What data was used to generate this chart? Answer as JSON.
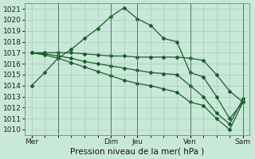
{
  "title": "Pression niveau de la mer( hPa )",
  "bg_color": "#c8e8d8",
  "grid_color": "#a8ccc0",
  "line_color": "#1a5e2a",
  "ylim": [
    1009.5,
    1021.5
  ],
  "yticks": [
    1010,
    1011,
    1012,
    1013,
    1014,
    1015,
    1016,
    1017,
    1018,
    1019,
    1020,
    1021
  ],
  "xtick_labels": [
    "Mer",
    "Dim",
    "Jeu",
    "Ven",
    "Sam"
  ],
  "xtick_positions": [
    0,
    6,
    8,
    12,
    16
  ],
  "line1_x": [
    0,
    1,
    2,
    3,
    4,
    5,
    6,
    7,
    8,
    9,
    10,
    11,
    12,
    13,
    14,
    15,
    16
  ],
  "line1_y": [
    1014.0,
    1015.2,
    1016.5,
    1017.3,
    1018.3,
    1019.2,
    1020.3,
    1021.1,
    1020.1,
    1019.5,
    1018.3,
    1018.0,
    1015.2,
    1014.8,
    1013.0,
    1011.0,
    1012.5
  ],
  "line2_x": [
    0,
    1,
    2,
    3,
    4,
    5,
    6,
    7,
    8,
    9,
    10,
    11,
    12,
    13,
    14,
    15,
    16
  ],
  "line2_y": [
    1017.0,
    1017.0,
    1017.0,
    1017.0,
    1016.9,
    1016.8,
    1016.7,
    1016.7,
    1016.6,
    1016.6,
    1016.6,
    1016.6,
    1016.5,
    1016.3,
    1015.0,
    1013.5,
    1012.5
  ],
  "line3_x": [
    0,
    1,
    2,
    3,
    4,
    5,
    6,
    7,
    8,
    9,
    10,
    11,
    12,
    13,
    14,
    15,
    16
  ],
  "line3_y": [
    1017.0,
    1016.9,
    1016.7,
    1016.5,
    1016.2,
    1016.0,
    1015.8,
    1015.6,
    1015.4,
    1015.2,
    1015.1,
    1015.0,
    1014.0,
    1013.0,
    1011.5,
    1010.5,
    1012.8
  ],
  "line4_x": [
    0,
    1,
    2,
    3,
    4,
    5,
    6,
    7,
    8,
    9,
    10,
    11,
    12,
    13,
    14,
    15,
    16
  ],
  "line4_y": [
    1017.0,
    1016.8,
    1016.5,
    1016.1,
    1015.7,
    1015.3,
    1014.9,
    1014.5,
    1014.2,
    1014.0,
    1013.7,
    1013.4,
    1012.5,
    1012.2,
    1011.0,
    1010.0,
    1012.5
  ],
  "vline_positions": [
    2,
    6,
    8,
    12,
    16
  ],
  "xlabel_fontsize": 7.5,
  "tick_fontsize": 6.5,
  "ylabel_fontsize": 6.5
}
